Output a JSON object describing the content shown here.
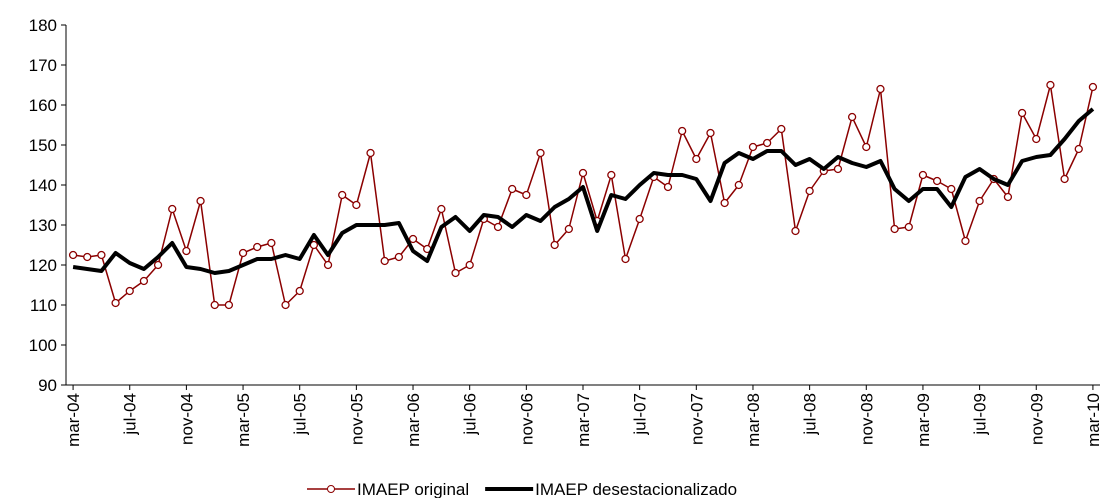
{
  "chart_data": {
    "type": "line",
    "categories": [
      "mar-04",
      null,
      null,
      null,
      "jul-04",
      null,
      null,
      null,
      "nov-04",
      null,
      null,
      null,
      "mar-05",
      null,
      null,
      null,
      "jul-05",
      null,
      null,
      null,
      "nov-05",
      null,
      null,
      null,
      "mar-06",
      null,
      null,
      null,
      "jul-06",
      null,
      null,
      null,
      "nov-06",
      null,
      null,
      null,
      "mar-07",
      null,
      null,
      null,
      "jul-07",
      null,
      null,
      null,
      "nov-07",
      null,
      null,
      null,
      "mar-08",
      null,
      null,
      null,
      "jul-08",
      null,
      null,
      null,
      "nov-08",
      null,
      null,
      null,
      "mar-09",
      null,
      null,
      null,
      "jul-09",
      null,
      null,
      null,
      "nov-09",
      null,
      null,
      null,
      "mar-10"
    ],
    "series": [
      {
        "name": "IMAEP original",
        "color": "#8b0000",
        "marker": "circle",
        "values": [
          122.5,
          122,
          122.5,
          110.5,
          113.5,
          116,
          120,
          134,
          123.5,
          136,
          110,
          110,
          123,
          124.5,
          125.5,
          110,
          113.5,
          125,
          120,
          137.5,
          135,
          148,
          121,
          122,
          126.5,
          124,
          134,
          118,
          120,
          131.5,
          129.5,
          139,
          137.5,
          148,
          125,
          129,
          143,
          131,
          142.5,
          121.5,
          131.5,
          142,
          139.5,
          153.5,
          146.5,
          153,
          135.5,
          140,
          149.5,
          150.5,
          154,
          128.5,
          138.5,
          143.5,
          144,
          157,
          149.5,
          164,
          129,
          129.5,
          142.5,
          141,
          139,
          126,
          136,
          141.5,
          137,
          158,
          151.5,
          165,
          141.5,
          149,
          164.5
        ]
      },
      {
        "name": "IMAEP desestacionalizado",
        "color": "#000000",
        "marker": "none",
        "values": [
          119.5,
          119,
          118.5,
          123,
          120.5,
          119,
          122,
          125.5,
          119.5,
          119,
          118,
          118.5,
          120,
          121.5,
          121.5,
          122.5,
          121.5,
          127.5,
          122.5,
          128,
          130,
          130,
          130,
          130.5,
          123.5,
          121,
          129.5,
          132,
          128.5,
          132.5,
          132,
          129.5,
          132.5,
          131,
          134.5,
          136.5,
          139.5,
          128.5,
          137.5,
          136.5,
          140,
          143,
          142.5,
          142.5,
          141.5,
          136,
          145.5,
          148,
          146.5,
          148.5,
          148.5,
          145,
          146.5,
          144,
          147,
          145.5,
          144.5,
          146,
          139,
          136,
          139,
          139,
          134.5,
          142,
          144,
          141.5,
          140,
          146,
          147,
          147.5,
          151.5,
          156,
          159
        ]
      }
    ],
    "ylim": [
      90,
      180
    ],
    "yticks": [
      90,
      100,
      110,
      120,
      130,
      140,
      150,
      160,
      170,
      180
    ],
    "legend": "bottom"
  }
}
